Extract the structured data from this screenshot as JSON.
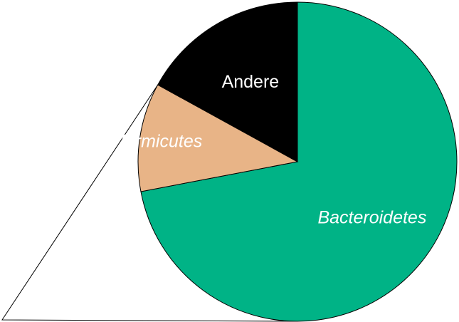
{
  "chart_data": {
    "type": "pie",
    "slices": [
      {
        "label": "Bacteroidetes",
        "value": 72,
        "color": "#00b386",
        "italic": true
      },
      {
        "label": "Firmicutes",
        "value": 11,
        "color": "#e8b487",
        "italic": true
      },
      {
        "label": "Andere",
        "value": 17,
        "color": "#000000",
        "italic": false
      }
    ],
    "title": "",
    "legend": "none"
  }
}
